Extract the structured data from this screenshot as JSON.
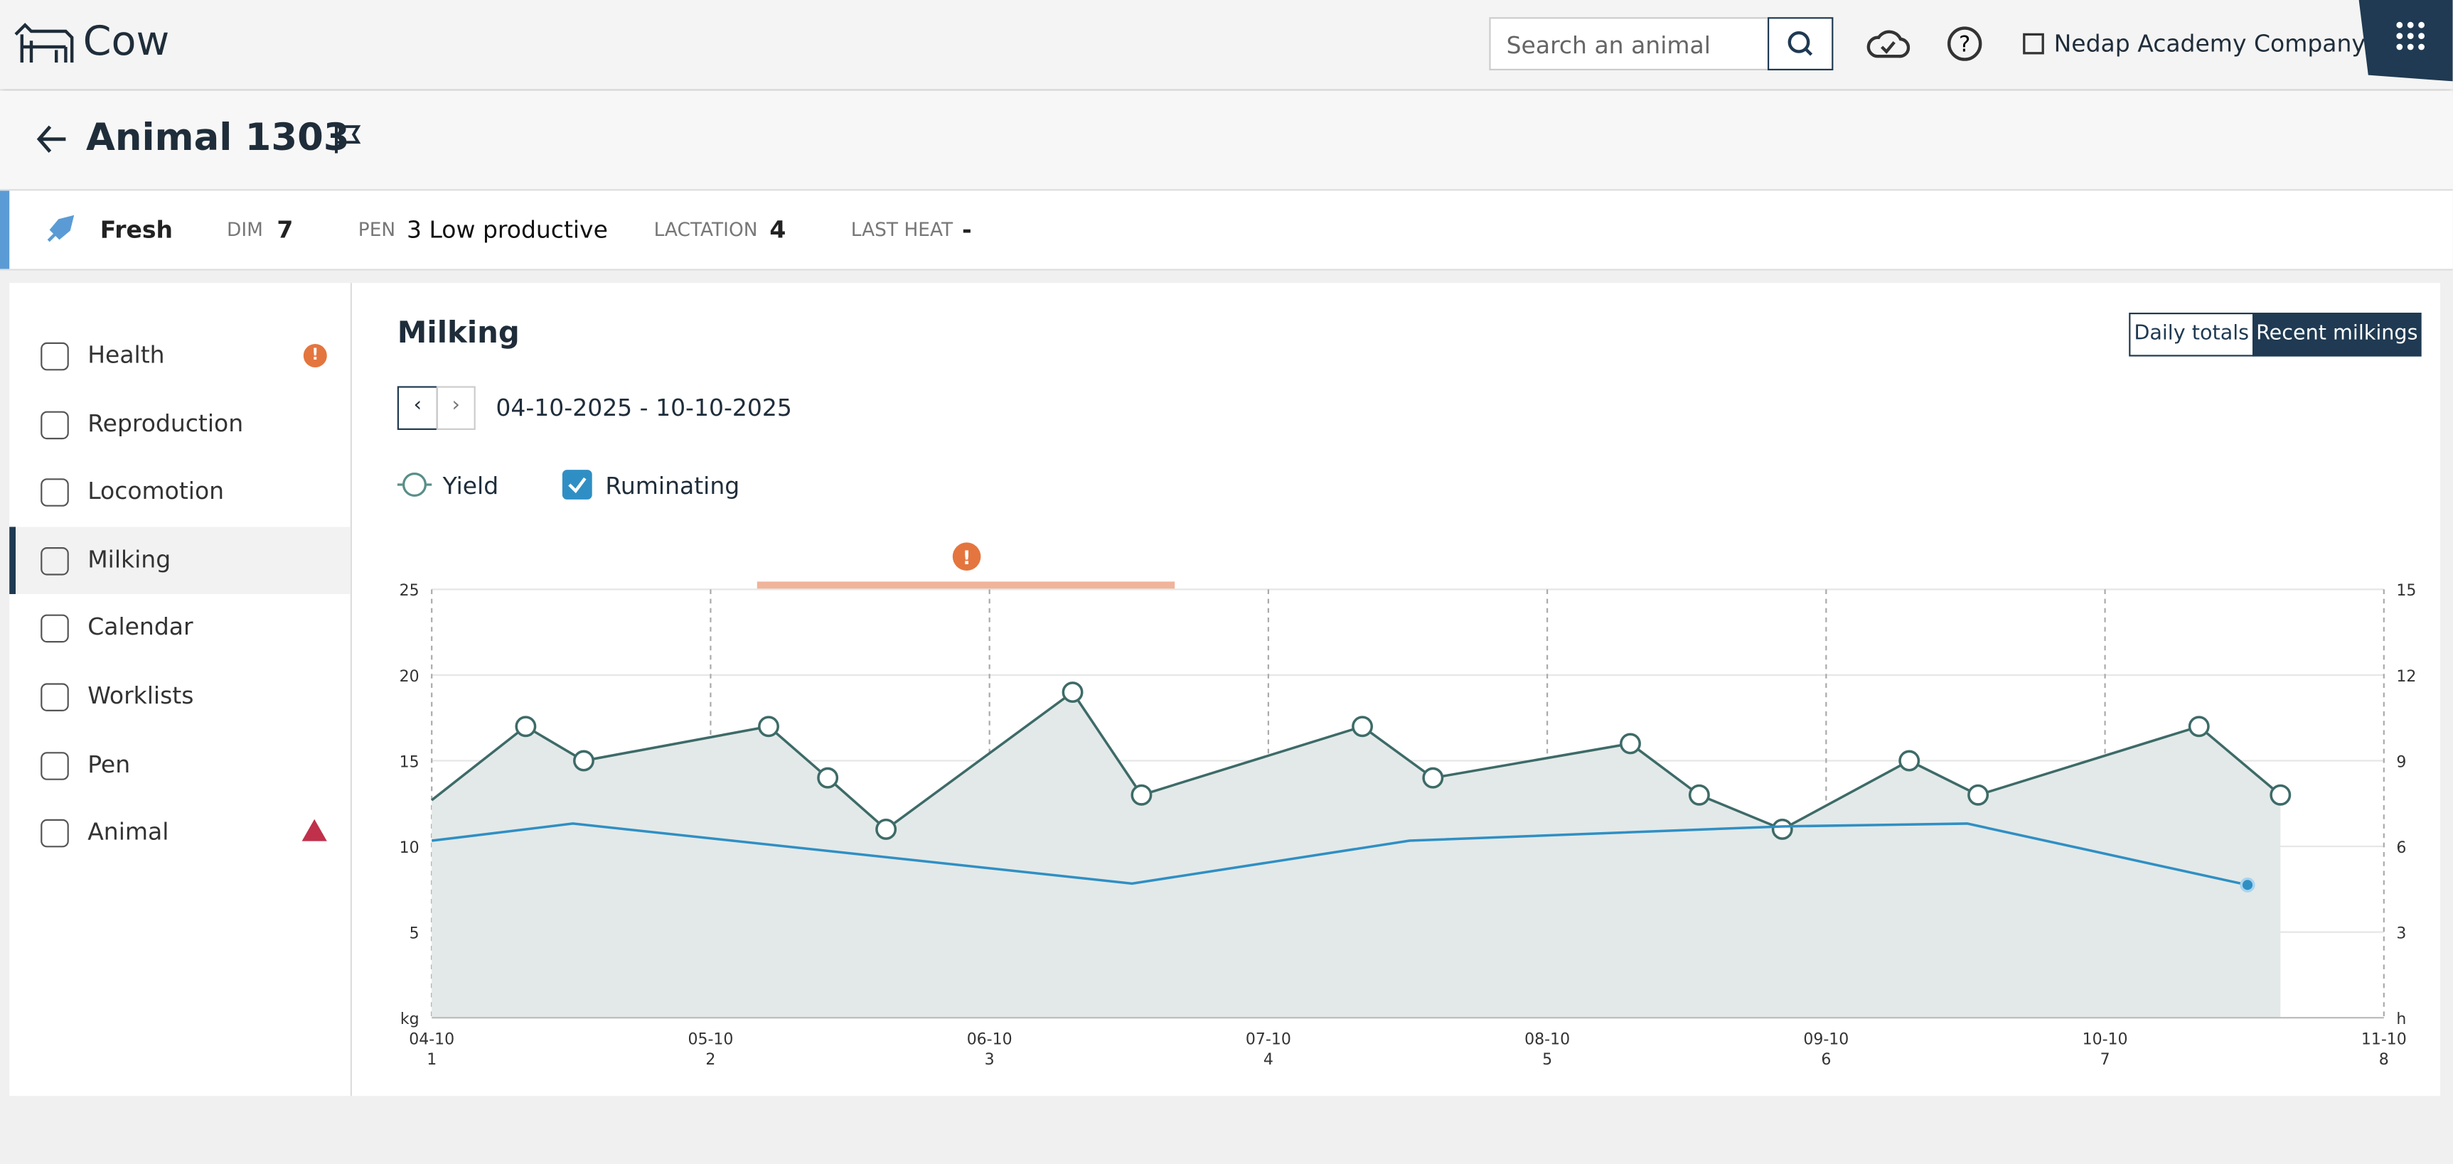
{
  "header": {
    "app_name": "Cow",
    "search_placeholder": "Search an animal",
    "company": "Nedap Academy Company"
  },
  "animal": {
    "title": "Animal 1303"
  },
  "status": {
    "state": "Fresh",
    "dim_label": "DIM",
    "dim": "7",
    "pen_label": "PEN",
    "pen": "3 Low productive",
    "lactation_label": "LACTATION",
    "lactation": "4",
    "last_heat_label": "LAST HEAT",
    "last_heat": "-"
  },
  "sidebar": {
    "items": [
      "Health",
      "Reproduction",
      "Locomotion",
      "Milking",
      "Calendar",
      "Worklists",
      "Pen",
      "Animal"
    ]
  },
  "view": {
    "title": "Milking",
    "buttons": [
      "Daily totals",
      "Recent milkings"
    ],
    "date_range": "04-10-2025 - 10-10-2025"
  },
  "chart_data": {
    "type": "line",
    "xlim": [
      0,
      7
    ],
    "xticks": [
      {
        "value": 0,
        "label": "04-10"
      },
      {
        "value": 1,
        "label": "05-10"
      },
      {
        "value": 2,
        "label": "06-10"
      },
      {
        "value": 3,
        "label": "07-10"
      },
      {
        "value": 4,
        "label": "08-10"
      },
      {
        "value": 5,
        "label": "09-10"
      },
      {
        "value": 6,
        "label": "10-10"
      },
      {
        "value": 7,
        "label": "11-10"
      }
    ],
    "xtick_sublabels": [
      1,
      2,
      3,
      4,
      5,
      6,
      7,
      8
    ],
    "ylim": [
      0,
      25
    ],
    "yticks": [
      {
        "value": 0,
        "label": "kg"
      },
      5,
      10,
      15,
      20,
      25
    ],
    "y2lim": [
      0,
      15
    ],
    "y2ticks": [
      {
        "value": 0,
        "label": "h"
      },
      3,
      6,
      9,
      12,
      15
    ],
    "grid": true,
    "series": [
      {
        "name": "Yield",
        "color": "#3d6b68",
        "x": [
          0,
          0.337,
          0.545,
          1.208,
          1.42,
          1.629,
          2.298,
          2.545,
          3.337,
          3.59,
          4.298,
          4.545,
          4.843,
          5.298,
          5.545,
          6.337,
          6.629
        ],
        "values": [
          12.7,
          17,
          15,
          17,
          14,
          11,
          19,
          13,
          17,
          14,
          16,
          13,
          11,
          15,
          13,
          17,
          13
        ]
      },
      {
        "name": "Ruminating",
        "color": "#2f8fc4",
        "axis": "y2",
        "x": [
          0,
          0.506,
          2.511,
          3.506,
          4.843,
          5.506,
          6.511
        ],
        "values": [
          6.2,
          6.8,
          4.7,
          6.2,
          6.7,
          6.8,
          4.65
        ]
      }
    ]
  }
}
